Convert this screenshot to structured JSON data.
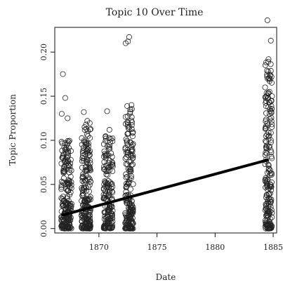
{
  "chart_data": {
    "type": "scatter",
    "title": "Topic 10 Over Time",
    "xlabel": "Date",
    "ylabel": "Topic Proportion",
    "xlim": [
      1866.2,
      1885.3
    ],
    "ylim": [
      -0.005,
      0.228
    ],
    "x_ticks": [
      1870,
      1875,
      1880,
      1885
    ],
    "y_ticks": [
      0.0,
      0.05,
      0.1,
      0.15,
      0.2
    ],
    "grid": false,
    "trend_line": {
      "x": [
        1866.8,
        1884.6
      ],
      "y": [
        0.015,
        0.078
      ]
    },
    "clusters": [
      {
        "x_center": 1867.2,
        "x_spread": 0.45,
        "y_range": [
          0.0,
          0.1
        ],
        "count": 200
      },
      {
        "x_center": 1868.9,
        "x_spread": 0.4,
        "y_range": [
          0.0,
          0.12
        ],
        "count": 210
      },
      {
        "x_center": 1870.8,
        "x_spread": 0.4,
        "y_range": [
          0.0,
          0.11
        ],
        "count": 170
      },
      {
        "x_center": 1872.6,
        "x_spread": 0.35,
        "y_range": [
          0.0,
          0.14
        ],
        "count": 190
      },
      {
        "x_center": 1884.6,
        "x_spread": 0.3,
        "y_range": [
          0.0,
          0.19
        ],
        "count": 200
      }
    ],
    "highlighted_points": [
      {
        "x": 1866.9,
        "y": 0.175
      },
      {
        "x": 1867.1,
        "y": 0.148
      },
      {
        "x": 1866.8,
        "y": 0.13
      },
      {
        "x": 1867.3,
        "y": 0.125
      },
      {
        "x": 1868.7,
        "y": 0.132
      },
      {
        "x": 1869.0,
        "y": 0.122
      },
      {
        "x": 1870.7,
        "y": 0.133
      },
      {
        "x": 1870.9,
        "y": 0.112
      },
      {
        "x": 1872.3,
        "y": 0.21
      },
      {
        "x": 1872.6,
        "y": 0.217
      },
      {
        "x": 1872.5,
        "y": 0.212
      },
      {
        "x": 1872.8,
        "y": 0.14
      },
      {
        "x": 1872.7,
        "y": 0.135
      },
      {
        "x": 1884.5,
        "y": 0.236
      },
      {
        "x": 1884.8,
        "y": 0.213
      },
      {
        "x": 1884.6,
        "y": 0.192
      },
      {
        "x": 1884.3,
        "y": 0.16
      },
      {
        "x": 1884.9,
        "y": 0.15
      },
      {
        "x": 1884.4,
        "y": 0.015
      },
      {
        "x": 1884.7,
        "y": 0.004
      }
    ]
  }
}
